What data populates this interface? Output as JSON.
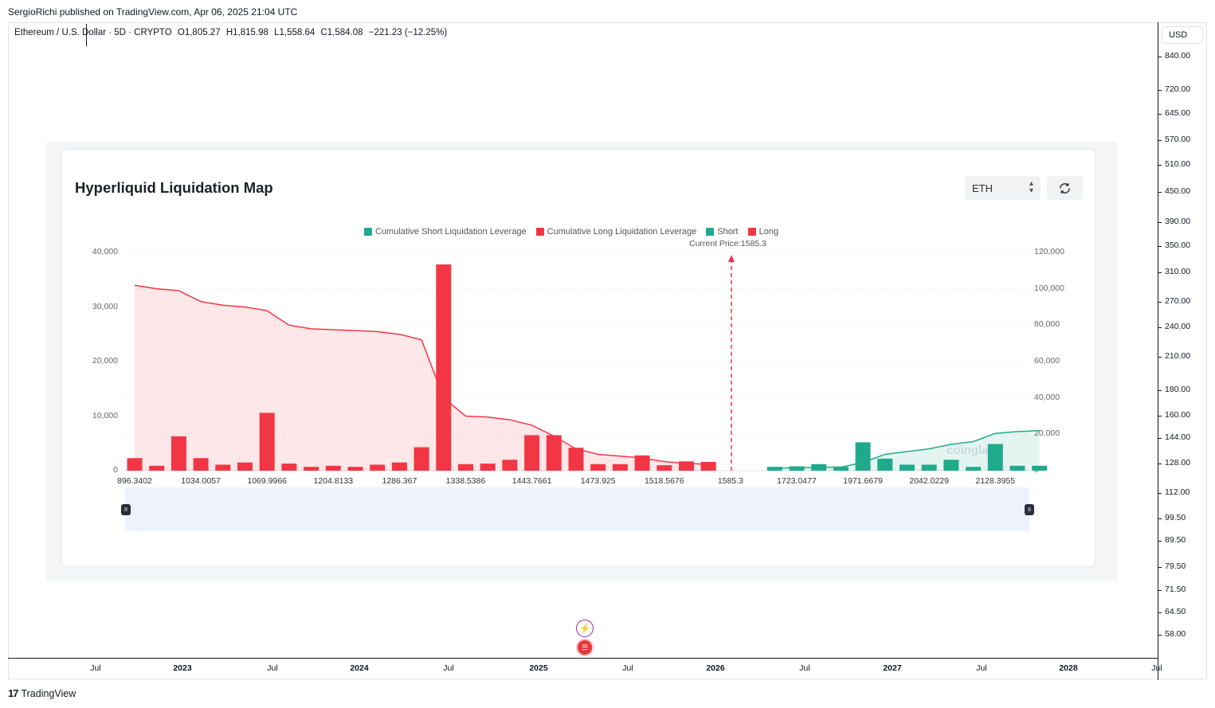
{
  "header": {
    "published": "SergioRichi published on TradingView.com, Apr 06, 2025 21:04 UTC",
    "symbol": "Ethereum / U.S. Dollar · 5D · CRYPTO",
    "open": "O1,805.27",
    "high": "H1,815.98",
    "low": "L1,558.64",
    "close": "C1,584.08",
    "change": "−221.23 (−12.25%)"
  },
  "price_axis": {
    "currency": "USD",
    "ticks": [
      "840.00",
      "720.00",
      "645.00",
      "570.00",
      "510.00",
      "450.00",
      "390.00",
      "350.00",
      "310.00",
      "270.00",
      "240.00",
      "210.00",
      "180.00",
      "160.00",
      "144.00",
      "128.00",
      "112.00",
      "99.50",
      "89.50",
      "79.50",
      "71.50",
      "64.50",
      "58.00"
    ]
  },
  "time_axis": {
    "ticks": [
      {
        "label": "Jul",
        "year": false
      },
      {
        "label": "2023",
        "year": true
      },
      {
        "label": "Jul",
        "year": false
      },
      {
        "label": "2024",
        "year": true
      },
      {
        "label": "Jul",
        "year": false
      },
      {
        "label": "2025",
        "year": true
      },
      {
        "label": "Jul",
        "year": false
      },
      {
        "label": "2026",
        "year": true
      },
      {
        "label": "Jul",
        "year": false
      },
      {
        "label": "2027",
        "year": true
      },
      {
        "label": "Jul",
        "year": false
      },
      {
        "label": "2028",
        "year": true
      },
      {
        "label": "Jul",
        "year": false
      }
    ]
  },
  "footer": {
    "brand": "TradingView",
    "logo_glyph": "17"
  },
  "icons": {
    "events": [
      "lightning-event-icon",
      "us-flag-event-icon"
    ],
    "refresh": "refresh-icon"
  },
  "card": {
    "title": "Hyperliquid Liquidation Map",
    "coin_select": "ETH",
    "watermark": "coinglass"
  },
  "chart_data": {
    "type": "bar",
    "title": "Hyperliquid Liquidation Map",
    "legend": [
      {
        "name": "Cumulative Short Liquidation Leverage",
        "color": "#1fab8b"
      },
      {
        "name": "Cumulative Long Liquidation Leverage",
        "color": "#f23645"
      },
      {
        "name": "Short",
        "color": "#1fab8b"
      },
      {
        "name": "Long",
        "color": "#f23645"
      }
    ],
    "legend_placement": "top-center",
    "current_price_label": "Current Price:1585.3",
    "current_price": 1585.3,
    "x_tick_labels": [
      "896.3402",
      "1034.0057",
      "1069.9966",
      "1204.8133",
      "1286.367",
      "1338.5386",
      "1443.7661",
      "1473.925",
      "1518.5676",
      "1585.3",
      "1723.0477",
      "1971.6679",
      "2042.0229",
      "2128.3955"
    ],
    "left_axis": {
      "ticks": [
        "40,000",
        "30,000",
        "20,000",
        "10,000",
        "0"
      ],
      "ylim": [
        0,
        40000
      ]
    },
    "right_axis": {
      "ticks": [
        "120,000",
        "100,000",
        "80,000",
        "60,000",
        "40,000",
        "20,000",
        "0"
      ],
      "ylim": [
        0,
        120000
      ]
    },
    "long_bars": [
      2300,
      900,
      6300,
      2300,
      1100,
      1500,
      10600,
      1300,
      700,
      900,
      700,
      1100,
      1500,
      4300,
      37800,
      1200,
      1300,
      2000,
      6500,
      6500,
      4200,
      1200,
      1200,
      2800,
      1000,
      1700,
      1600
    ],
    "short_bars": [
      700,
      800,
      1200,
      700,
      5200,
      2200,
      1100,
      1100,
      2000,
      700,
      4900,
      900,
      900
    ],
    "cumulative_long": [
      102000,
      100000,
      99000,
      93000,
      91000,
      90000,
      88000,
      80000,
      78000,
      77500,
      77000,
      76500,
      75000,
      72000,
      40000,
      30000,
      29500,
      28000,
      25000,
      19000,
      12000,
      9000,
      8000,
      7000,
      5000,
      4000,
      3500
    ],
    "cumulative_short": [
      1500,
      1600,
      1800,
      2000,
      4500,
      9000,
      10500,
      12000,
      14500,
      16000,
      20500,
      21500,
      22000
    ]
  }
}
